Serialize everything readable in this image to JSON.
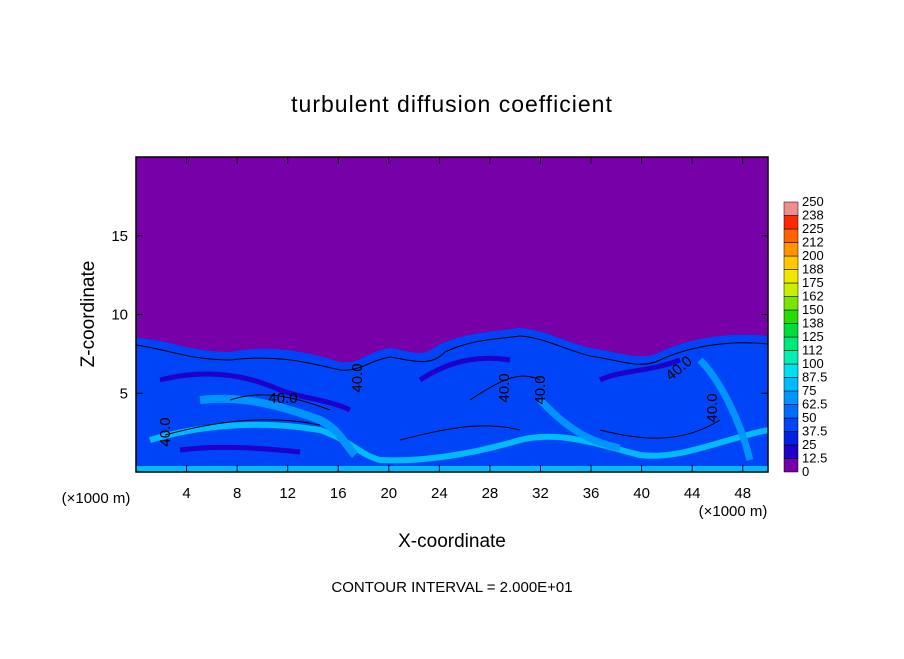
{
  "chart_data": {
    "type": "contour",
    "title": "turbulent diffusion coefficient",
    "x_label": "X-coordinate",
    "y_label": "Z-coordinate",
    "x_unit": "(×1000 m)",
    "y_unit": "(×1000 m)",
    "footnote": "CONTOUR INTERVAL = 2.000E+01",
    "contour_labels": [
      "40.0",
      "40.0",
      "40.0",
      "40.0",
      "40.0",
      "40.0",
      "40.0"
    ],
    "xlim": [
      0,
      50
    ],
    "xticks": [
      4,
      8,
      12,
      16,
      20,
      24,
      28,
      32,
      36,
      40,
      44,
      48
    ],
    "ylim": [
      0,
      20
    ],
    "yticks": [
      5,
      10,
      15
    ],
    "colorbar": {
      "levels": [
        0,
        12.5,
        25,
        37.5,
        50,
        62.5,
        75,
        87.5,
        100,
        112,
        125,
        138,
        150,
        162,
        175,
        188,
        200,
        212,
        225,
        238,
        250
      ],
      "colors": [
        "#7800a8",
        "#1e00c8",
        "#0020e0",
        "#0044f8",
        "#006cff",
        "#0094ff",
        "#00bcff",
        "#00e0f0",
        "#00f0b4",
        "#00e878",
        "#00dc3c",
        "#28dc00",
        "#78e600",
        "#c8f000",
        "#f0e600",
        "#ffc800",
        "#ff9600",
        "#ff6400",
        "#ff2800",
        "#f08c8c"
      ]
    }
  }
}
